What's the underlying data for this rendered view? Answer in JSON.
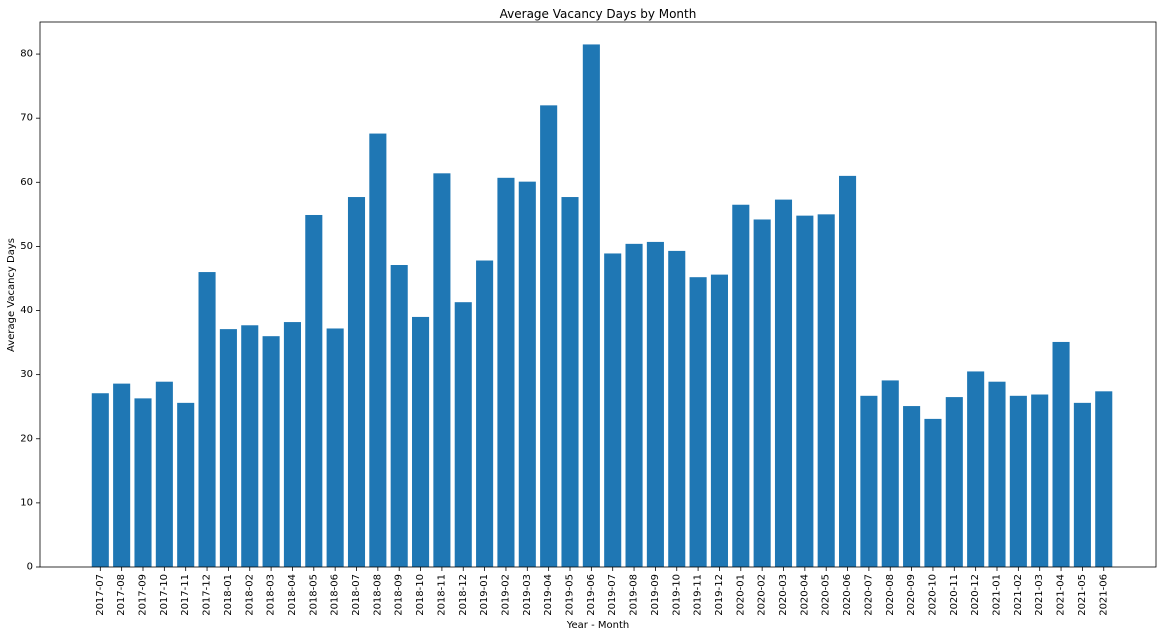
{
  "chart_data": {
    "type": "bar",
    "title": "Average Vacancy Days by Month",
    "xlabel": "Year - Month",
    "ylabel": "Average Vacancy Days",
    "ylim": [
      0,
      85
    ],
    "yticks": [
      0,
      10,
      20,
      30,
      40,
      50,
      60,
      70,
      80
    ],
    "grid": false,
    "bar_color": "#1f77b4",
    "categories": [
      "2017-07",
      "2017-08",
      "2017-09",
      "2017-10",
      "2017-11",
      "2017-12",
      "2018-01",
      "2018-02",
      "2018-03",
      "2018-04",
      "2018-05",
      "2018-06",
      "2018-07",
      "2018-08",
      "2018-09",
      "2018-10",
      "2018-11",
      "2018-12",
      "2019-01",
      "2019-02",
      "2019-03",
      "2019-04",
      "2019-05",
      "2019-06",
      "2019-07",
      "2019-08",
      "2019-09",
      "2019-10",
      "2019-11",
      "2019-12",
      "2020-01",
      "2020-02",
      "2020-03",
      "2020-04",
      "2020-05",
      "2020-06",
      "2020-07",
      "2020-08",
      "2020-09",
      "2020-10",
      "2020-11",
      "2020-12",
      "2021-01",
      "2021-02",
      "2021-03",
      "2021-04",
      "2021-05",
      "2021-06"
    ],
    "values": [
      27.1,
      28.6,
      26.3,
      28.9,
      25.6,
      46.0,
      37.1,
      37.7,
      36.0,
      38.2,
      54.9,
      37.2,
      57.7,
      67.6,
      47.1,
      39.0,
      61.4,
      41.3,
      47.8,
      60.7,
      60.1,
      72.0,
      57.7,
      81.5,
      48.9,
      50.4,
      50.7,
      49.3,
      45.2,
      45.6,
      56.5,
      54.2,
      57.3,
      54.8,
      55.0,
      61.0,
      26.7,
      29.1,
      25.1,
      23.1,
      26.5,
      30.5,
      28.9,
      26.7,
      26.9,
      35.1,
      25.6,
      27.4
    ]
  }
}
